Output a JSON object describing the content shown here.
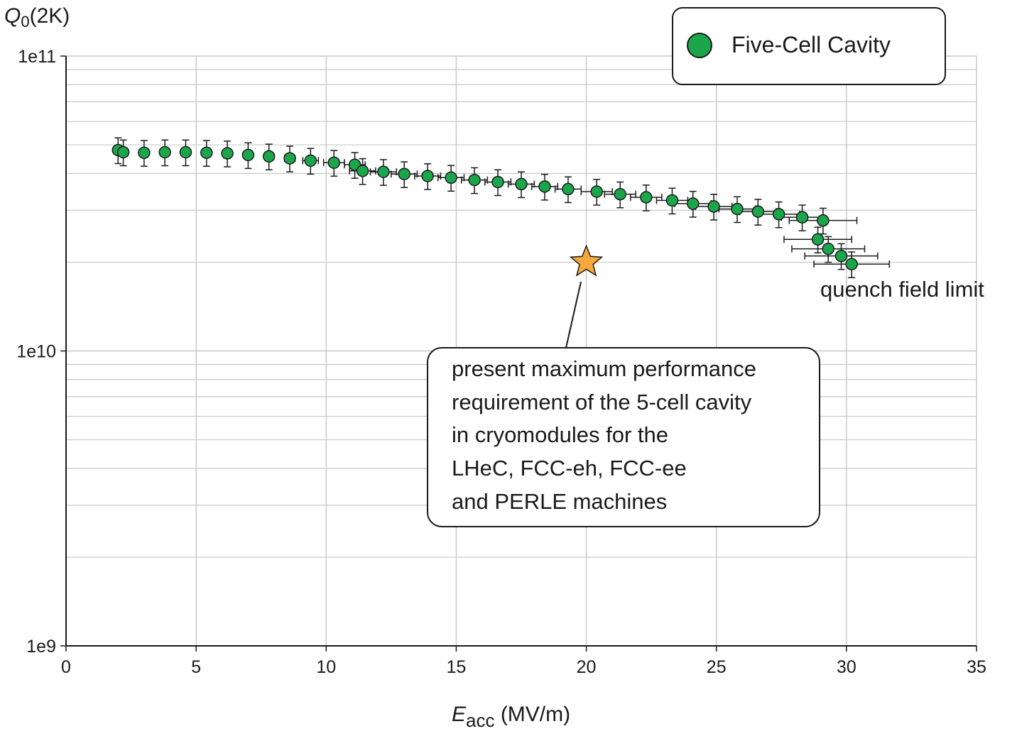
{
  "chart_data": {
    "type": "scatter",
    "title": "",
    "ylabel_main": "Q",
    "ylabel_sub": "0",
    "ylabel_suffix": "(2K)",
    "xlabel_main": "E",
    "xlabel_sub": "acc",
    "xlabel_suffix": " (MV/m)",
    "xlim": [
      0,
      35
    ],
    "ylim": [
      1000000000.0,
      100000000000.0
    ],
    "yscale": "log",
    "grid": true,
    "x_ticks": [
      "0",
      "5",
      "10",
      "15",
      "20",
      "25",
      "30",
      "35"
    ],
    "y_ticks": [
      "1e9",
      "1e10",
      "1e11"
    ],
    "legend": {
      "placement": "top-right",
      "label": "Five-Cell Cavity"
    },
    "colors": {
      "marker": "#1ca64c",
      "star": "#f7a93b",
      "grid": "#c8c8c8"
    },
    "series": [
      {
        "name": "Five-Cell Cavity",
        "x": [
          2.0,
          2.2,
          3.0,
          3.8,
          4.6,
          5.4,
          6.2,
          7.0,
          7.8,
          8.6,
          9.4,
          10.3,
          11.1,
          11.4,
          12.2,
          13.0,
          13.9,
          14.8,
          15.7,
          16.6,
          17.5,
          18.4,
          19.3,
          20.4,
          21.3,
          22.3,
          23.3,
          24.1,
          24.9,
          25.8,
          26.6,
          27.4,
          28.3,
          29.1,
          28.9,
          29.3,
          29.8,
          30.2
        ],
        "y": [
          48000000000.0,
          47200000000.0,
          47000000000.0,
          47200000000.0,
          47200000000.0,
          47000000000.0,
          46800000000.0,
          46200000000.0,
          45700000000.0,
          45000000000.0,
          44200000000.0,
          43500000000.0,
          42800000000.0,
          40800000000.0,
          40500000000.0,
          39800000000.0,
          39200000000.0,
          38700000000.0,
          38000000000.0,
          37400000000.0,
          36800000000.0,
          36100000000.0,
          35400000000.0,
          34700000000.0,
          34000000000.0,
          33200000000.0,
          32400000000.0,
          31600000000.0,
          30900000000.0,
          30300000000.0,
          29700000000.0,
          29100000000.0,
          28400000000.0,
          27700000000.0,
          23900000000.0,
          22200000000.0,
          21000000000.0,
          19700000000.0
        ],
        "x_err": [
          0,
          0,
          0,
          0,
          0,
          0,
          0,
          0,
          0,
          0.2,
          0.3,
          0.4,
          0.4,
          0.5,
          0.5,
          0.5,
          0.5,
          0.5,
          0.5,
          0.5,
          0.5,
          0.5,
          0.5,
          0.6,
          0.6,
          0.6,
          0.6,
          0.7,
          0.7,
          0.7,
          0.7,
          0.8,
          0.8,
          1.3,
          1.3,
          1.4,
          1.4,
          1.45
        ],
        "y_err_frac": 0.1
      }
    ],
    "annotations": {
      "star": {
        "x": 20.0,
        "y": 20000000000.0
      },
      "quench": "quench field limit",
      "box_lines": [
        "present maximum performance",
        "requirement of the 5-cell cavity",
        "in cryomodules for the",
        "LHeC, FCC-eh, FCC-ee",
        "and PERLE machines"
      ]
    }
  }
}
